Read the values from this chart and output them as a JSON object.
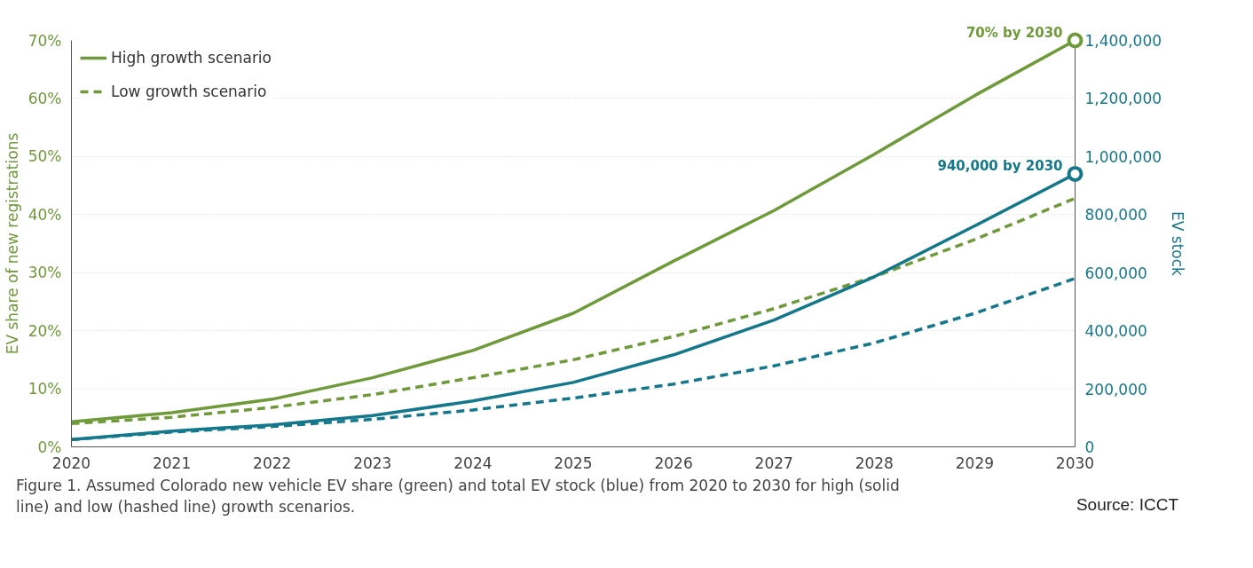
{
  "chart_data": {
    "type": "line",
    "xlabel": null,
    "ylabel": "EV share of new registrations",
    "y2label": "EV stock",
    "x": [
      2020,
      2021,
      2022,
      2023,
      2024,
      2025,
      2026,
      2027,
      2028,
      2029,
      2030
    ],
    "xlim": [
      2020,
      2030
    ],
    "xticks": [
      2020,
      2021,
      2022,
      2023,
      2024,
      2025,
      2026,
      2027,
      2028,
      2029,
      2030
    ],
    "ylim": [
      0,
      70
    ],
    "yticks": [
      {
        "value": 0,
        "label": "0%"
      },
      {
        "value": 10,
        "label": "10%"
      },
      {
        "value": 20,
        "label": "20%"
      },
      {
        "value": 30,
        "label": "30%"
      },
      {
        "value": 40,
        "label": "40%"
      },
      {
        "value": 50,
        "label": "50%"
      },
      {
        "value": 60,
        "label": "60%"
      },
      {
        "value": 70,
        "label": "70%"
      }
    ],
    "y2lim": [
      0,
      1400000
    ],
    "y2ticks": [
      {
        "value": 0,
        "label": "0"
      },
      {
        "value": 200000,
        "label": "200,000"
      },
      {
        "value": 400000,
        "label": "400,000"
      },
      {
        "value": 600000,
        "label": "600,000"
      },
      {
        "value": 800000,
        "label": "800,000"
      },
      {
        "value": 1000000,
        "label": "1,000,000"
      },
      {
        "value": 1200000,
        "label": "1,200,000"
      },
      {
        "value": 1400000,
        "label": "1,400,000"
      }
    ],
    "series": [
      {
        "name": "High growth scenario",
        "color": "#6f9a3a",
        "line_style": "solid",
        "values": [
          4.3,
          5.9,
          8.2,
          11.9,
          16.6,
          23,
          32,
          40.7,
          50.4,
          60.5,
          70
        ],
        "value_labels": [
          null,
          null,
          null,
          null,
          null,
          null,
          null,
          null,
          null,
          null,
          "70% by 2030"
        ]
      },
      {
        "name": "Low growth scenario",
        "color": "#6f9a3a",
        "line_style": "dashed",
        "values": [
          4.0,
          5.1,
          6.8,
          9.0,
          11.9,
          15,
          19,
          23.8,
          29.3,
          35.7,
          42.8
        ]
      },
      {
        "color": "#14788c",
        "line_style": "solid",
        "axis": "y2",
        "values": [
          25000,
          54000,
          76000,
          108000,
          158000,
          222000,
          317000,
          437000,
          586000,
          761000,
          940000
        ],
        "value_labels": [
          null,
          null,
          null,
          null,
          null,
          null,
          null,
          null,
          null,
          null,
          "940,000 by 2030"
        ]
      },
      {
        "color": "#14788c",
        "line_style": "dashed",
        "axis": "y2",
        "values": [
          25000,
          51000,
          70000,
          95000,
          127000,
          168000,
          216000,
          279000,
          358000,
          460000,
          580000
        ]
      }
    ],
    "grid": "y",
    "legend": "top left",
    "annotations": [
      "Figure 1. Assumed Colorado new vehicle EV share (green) and total EV stock (blue) from 2020 to 2030 for high (solid line) and low (hashed line) growth scenarios.",
      "Source: ICCT"
    ]
  }
}
